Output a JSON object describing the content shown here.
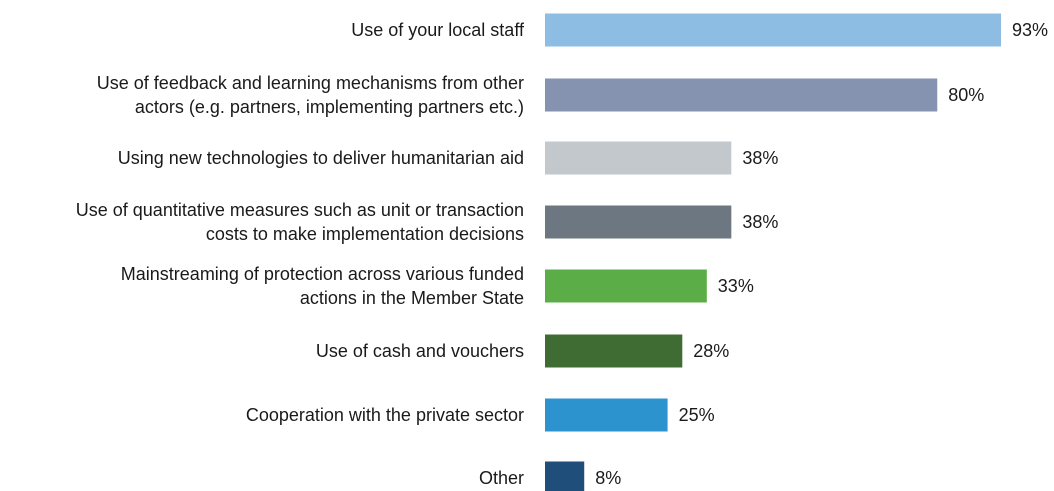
{
  "chart_data": {
    "type": "bar",
    "orientation": "horizontal",
    "categories": [
      [
        "Use of your local staff"
      ],
      [
        "Use of feedback and learning mechanisms from other",
        "actors (e.g. partners, implementing partners etc.)"
      ],
      [
        "Using new technologies to deliver humanitarian aid"
      ],
      [
        "Use of quantitative measures such as unit or transaction",
        "costs to make implementation decisions"
      ],
      [
        "Mainstreaming of protection across various funded",
        "actions in the Member State"
      ],
      [
        "Use of cash and vouchers"
      ],
      [
        "Cooperation with the private sector"
      ],
      [
        "Other"
      ]
    ],
    "values": [
      93,
      80,
      38,
      38,
      33,
      28,
      25,
      8
    ],
    "value_labels": [
      "93%",
      "80%",
      "38%",
      "38%",
      "33%",
      "28%",
      "25%",
      "8%"
    ],
    "colors": [
      "#8ebde3",
      "#8592b0",
      "#c2c8cb",
      "#6c7782",
      "#5bae47",
      "#3f6c33",
      "#2d93cf",
      "#1f4e7a"
    ],
    "xlim": [
      0,
      100
    ],
    "grid": false,
    "legend": "none"
  }
}
